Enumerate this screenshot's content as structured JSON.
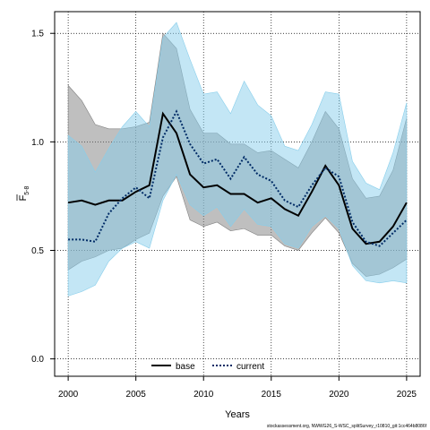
{
  "chart_data": {
    "type": "line",
    "xlabel": "Years",
    "ylabel": "F",
    "ylabel_subscript": "5-8",
    "xlim": [
      1999,
      2026
    ],
    "ylim": [
      -0.08,
      1.6
    ],
    "xticks": [
      "2000",
      "2005",
      "2010",
      "2015",
      "2020",
      "2025"
    ],
    "yticks": [
      "0.0",
      "0.5",
      "1.0",
      "1.5"
    ],
    "grid": true,
    "legend_position": "bottom-center",
    "x": [
      2000,
      2001,
      2002,
      2003,
      2004,
      2005,
      2006,
      2007,
      2008,
      2009,
      2010,
      2011,
      2012,
      2013,
      2014,
      2015,
      2016,
      2017,
      2018,
      2019,
      2020,
      2021,
      2022,
      2023,
      2024,
      2025
    ],
    "series": [
      {
        "name": "base",
        "color": "#000000",
        "fill": "#808080",
        "dash": "solid",
        "values": [
          0.72,
          0.73,
          0.71,
          0.73,
          0.73,
          0.77,
          0.8,
          1.13,
          1.04,
          0.85,
          0.79,
          0.8,
          0.76,
          0.76,
          0.72,
          0.74,
          0.69,
          0.66,
          0.77,
          0.89,
          0.8,
          0.6,
          0.53,
          0.54,
          0.61,
          0.72
        ],
        "lower": [
          0.41,
          0.45,
          0.47,
          0.5,
          0.51,
          0.55,
          0.58,
          0.75,
          0.84,
          0.64,
          0.61,
          0.63,
          0.59,
          0.6,
          0.57,
          0.57,
          0.52,
          0.5,
          0.58,
          0.65,
          0.58,
          0.44,
          0.38,
          0.39,
          0.42,
          0.46
        ],
        "upper": [
          1.26,
          1.19,
          1.08,
          1.06,
          1.06,
          1.07,
          1.09,
          1.5,
          1.43,
          1.15,
          1.04,
          1.04,
          0.99,
          0.99,
          0.95,
          0.96,
          0.92,
          0.88,
          1.0,
          1.14,
          1.06,
          0.83,
          0.74,
          0.75,
          0.87,
          1.11
        ]
      },
      {
        "name": "current",
        "color": "#002b66",
        "fill": "#87ceeb",
        "dash": "dotted",
        "values": [
          0.55,
          0.55,
          0.54,
          0.67,
          0.74,
          0.79,
          0.74,
          1.02,
          1.14,
          0.99,
          0.9,
          0.92,
          0.83,
          0.93,
          0.85,
          0.82,
          0.73,
          0.7,
          0.8,
          0.88,
          0.84,
          0.63,
          0.54,
          0.52,
          0.58,
          0.64
        ],
        "lower": [
          0.29,
          0.31,
          0.34,
          0.45,
          0.51,
          0.54,
          0.51,
          0.73,
          0.85,
          0.71,
          0.66,
          0.7,
          0.61,
          0.69,
          0.62,
          0.61,
          0.53,
          0.51,
          0.61,
          0.66,
          0.6,
          0.43,
          0.36,
          0.35,
          0.36,
          0.35
        ],
        "upper": [
          1.03,
          0.98,
          0.86,
          0.97,
          1.07,
          1.14,
          1.07,
          1.48,
          1.55,
          1.38,
          1.22,
          1.23,
          1.13,
          1.28,
          1.17,
          1.12,
          0.98,
          0.96,
          1.08,
          1.23,
          1.22,
          0.91,
          0.81,
          0.78,
          0.95,
          1.18
        ]
      }
    ]
  },
  "footnote": "stockassessment.org, NWWG26_S-WSC_splitSurvey_r10810_git:1cc464b8086f"
}
